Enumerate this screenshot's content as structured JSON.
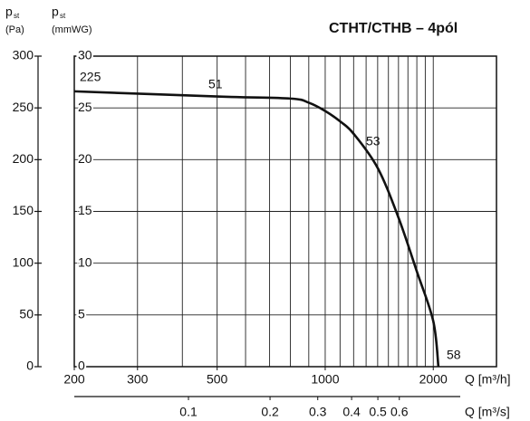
{
  "chart_data": {
    "type": "line",
    "title": "CTHT/CTHB – 4pól",
    "y_label": {
      "symbol": "p",
      "sub": "st",
      "unit": "(Pa)"
    },
    "y2_label": {
      "symbol": "p",
      "sub": "st",
      "unit": "(mmWG)"
    },
    "x_label": "Q [m³/h]",
    "x2_label": "Q [m³/s]",
    "x": [
      200,
      500,
      800,
      900,
      1000,
      1100,
      1200,
      1400,
      1600,
      1800,
      2000,
      2067
    ],
    "series": [
      {
        "name": "CTHT/CTHB",
        "color": "#111111",
        "values": [
          266,
          261,
          259,
          255,
          247,
          237,
          225,
          192,
          144,
          92,
          44,
          0
        ]
      }
    ],
    "annotations": [
      {
        "text": "225",
        "color": "#111111"
      },
      {
        "text": "51",
        "color": "#2b2f8f"
      },
      {
        "text": "53",
        "color": "#2b2f8f"
      },
      {
        "text": "58",
        "color": "#2b2f8f"
      }
    ],
    "log_x": true,
    "xlim": [
      200,
      3000
    ],
    "xticks": [
      200,
      300,
      500,
      1000,
      2000
    ],
    "xgrid": [
      300,
      400,
      500,
      600,
      700,
      800,
      900,
      1000,
      1100,
      1200,
      1300,
      1400,
      1500,
      1600,
      1700,
      1800,
      1900,
      2000
    ],
    "x2lim": [
      0.0379,
      1.37
    ],
    "x2ticks": [
      0.1,
      0.2,
      0.3,
      0.4,
      0.5,
      0.6
    ],
    "ylim": [
      0,
      300
    ],
    "yticks": [
      0,
      50,
      100,
      150,
      200,
      250,
      300
    ],
    "y2lim": [
      0,
      30
    ],
    "y2ticks": [
      0,
      5,
      10,
      15,
      20,
      25,
      30
    ],
    "grid": true
  }
}
